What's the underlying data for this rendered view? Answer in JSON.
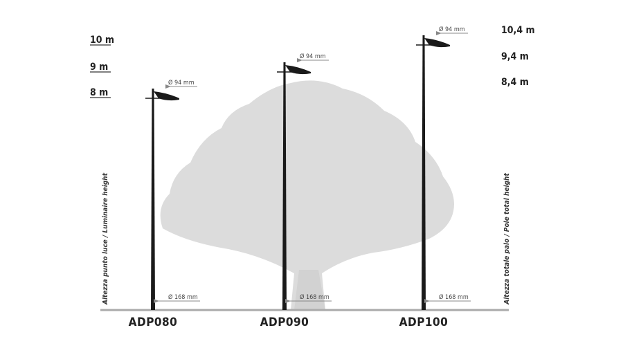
{
  "left_scale": [
    "10 m",
    "9 m",
    "8 m"
  ],
  "right_scale": [
    "10,4 m",
    "9,4 m",
    "8,4 m"
  ],
  "left_axis_label": "Altezza punto luce / Luminaire height",
  "right_axis_label": "Altezza totale palo / Pole total height",
  "poles": [
    {
      "name": "ADP080",
      "head_diameter": "Ø 94 mm",
      "base_diameter": "Ø 168 mm"
    },
    {
      "name": "ADP090",
      "head_diameter": "Ø 94 mm",
      "base_diameter": "Ø 168 mm"
    },
    {
      "name": "ADP100",
      "head_diameter": "Ø 94 mm",
      "base_diameter": "Ø 168 mm"
    }
  ]
}
